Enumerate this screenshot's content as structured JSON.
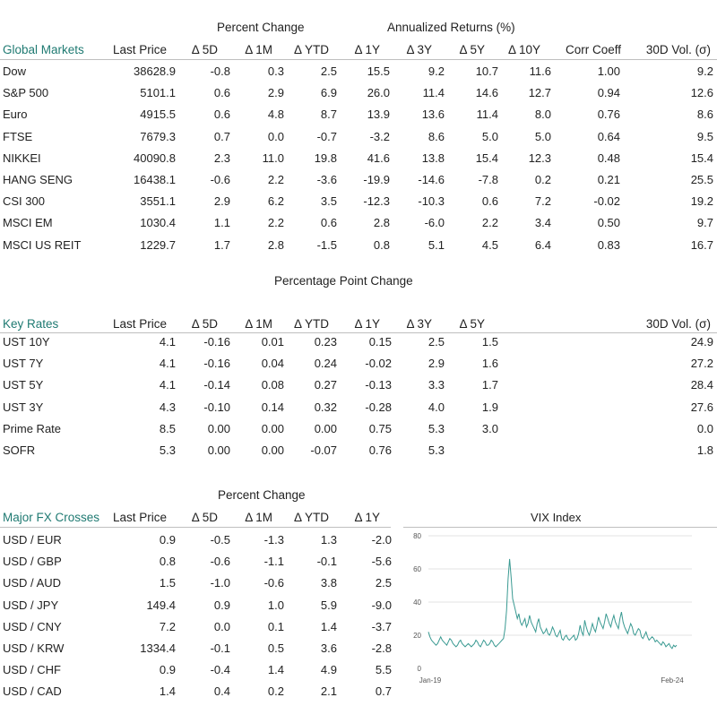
{
  "global": {
    "group_pct": "Percent Change",
    "group_ann": "Annualized Returns (%)",
    "title": "Global Markets",
    "cols": [
      "Last Price",
      "Δ 5D",
      "Δ 1M",
      "Δ YTD",
      "Δ 1Y",
      "Δ 3Y",
      "Δ 5Y",
      "Δ 10Y",
      "Corr Coeff",
      "30D Vol. (σ)"
    ],
    "rows": [
      {
        "name": "Dow",
        "vals": [
          "38628.9",
          "-0.8",
          "0.3",
          "2.5",
          "15.5",
          "9.2",
          "10.7",
          "11.6",
          "1.00",
          "9.2"
        ]
      },
      {
        "name": "S&P 500",
        "vals": [
          "5101.1",
          "0.6",
          "2.9",
          "6.9",
          "26.0",
          "11.4",
          "14.6",
          "12.7",
          "0.94",
          "12.6"
        ]
      },
      {
        "name": "Euro",
        "vals": [
          "4915.5",
          "0.6",
          "4.8",
          "8.7",
          "13.9",
          "13.6",
          "11.4",
          "8.0",
          "0.76",
          "8.6"
        ]
      },
      {
        "name": "FTSE",
        "vals": [
          "7679.3",
          "0.7",
          "0.0",
          "-0.7",
          "-3.2",
          "8.6",
          "5.0",
          "5.0",
          "0.64",
          "9.5"
        ]
      },
      {
        "name": "NIKKEI",
        "vals": [
          "40090.8",
          "2.3",
          "11.0",
          "19.8",
          "41.6",
          "13.8",
          "15.4",
          "12.3",
          "0.48",
          "15.4"
        ]
      },
      {
        "name": "HANG SENG",
        "vals": [
          "16438.1",
          "-0.6",
          "2.2",
          "-3.6",
          "-19.9",
          "-14.6",
          "-7.8",
          "0.2",
          "0.21",
          "25.5"
        ]
      },
      {
        "name": "CSI 300",
        "vals": [
          "3551.1",
          "2.9",
          "6.2",
          "3.5",
          "-12.3",
          "-10.3",
          "0.6",
          "7.2",
          "-0.02",
          "19.2"
        ]
      },
      {
        "name": "MSCI EM",
        "vals": [
          "1030.4",
          "1.1",
          "2.2",
          "0.6",
          "2.8",
          "-6.0",
          "2.2",
          "3.4",
          "0.50",
          "9.7"
        ]
      },
      {
        "name": "MSCI US REIT",
        "vals": [
          "1229.7",
          "1.7",
          "2.8",
          "-1.5",
          "0.8",
          "5.1",
          "4.5",
          "6.4",
          "0.83",
          "16.7"
        ]
      }
    ]
  },
  "rates": {
    "group": "Percentage Point Change",
    "title": "Key Rates",
    "cols": [
      "Last Price",
      "Δ 5D",
      "Δ 1M",
      "Δ YTD",
      "Δ 1Y",
      "Δ 3Y",
      "Δ 5Y",
      "30D Vol. (σ)"
    ],
    "rows": [
      {
        "name": "UST 10Y",
        "vals": [
          "4.1",
          "-0.16",
          "0.01",
          "0.23",
          "0.15",
          "2.5",
          "1.5",
          "24.9"
        ]
      },
      {
        "name": "UST 7Y",
        "vals": [
          "4.1",
          "-0.16",
          "0.04",
          "0.24",
          "-0.02",
          "2.9",
          "1.6",
          "27.2"
        ]
      },
      {
        "name": "UST 5Y",
        "vals": [
          "4.1",
          "-0.14",
          "0.08",
          "0.27",
          "-0.13",
          "3.3",
          "1.7",
          "28.4"
        ]
      },
      {
        "name": "UST 3Y",
        "vals": [
          "4.3",
          "-0.10",
          "0.14",
          "0.32",
          "-0.28",
          "4.0",
          "1.9",
          "27.6"
        ]
      },
      {
        "name": "Prime Rate",
        "vals": [
          "8.5",
          "0.00",
          "0.00",
          "0.00",
          "0.75",
          "5.3",
          "3.0",
          "0.0"
        ]
      },
      {
        "name": "SOFR",
        "vals": [
          "5.3",
          "0.00",
          "0.00",
          "-0.07",
          "0.76",
          "5.3",
          "",
          "1.8"
        ]
      }
    ]
  },
  "fx": {
    "group": "Percent Change",
    "title": "Major FX Crosses",
    "cols": [
      "Last Price",
      "Δ 5D",
      "Δ 1M",
      "Δ YTD",
      "Δ 1Y"
    ],
    "rows": [
      {
        "name": "USD / EUR",
        "vals": [
          "0.9",
          "-0.5",
          "-1.3",
          "1.3",
          "-2.0"
        ]
      },
      {
        "name": "USD / GBP",
        "vals": [
          "0.8",
          "-0.6",
          "-1.1",
          "-0.1",
          "-5.6"
        ]
      },
      {
        "name": "USD / AUD",
        "vals": [
          "1.5",
          "-1.0",
          "-0.6",
          "3.8",
          "2.5"
        ]
      },
      {
        "name": "USD / JPY",
        "vals": [
          "149.4",
          "0.9",
          "1.0",
          "5.9",
          "-9.0"
        ]
      },
      {
        "name": "USD / CNY",
        "vals": [
          "7.2",
          "0.0",
          "0.1",
          "1.4",
          "-3.7"
        ]
      },
      {
        "name": "USD / KRW",
        "vals": [
          "1334.4",
          "-0.1",
          "0.5",
          "3.6",
          "-2.8"
        ]
      },
      {
        "name": "USD / CHF",
        "vals": [
          "0.9",
          "-0.4",
          "1.4",
          "4.9",
          "5.5"
        ]
      },
      {
        "name": "USD / CAD",
        "vals": [
          "1.4",
          "0.4",
          "0.2",
          "2.1",
          "0.7"
        ]
      }
    ]
  },
  "colors": {
    "accent": "#1f7a72",
    "line": "#3a9a92",
    "grid": "#e3e3e3",
    "rule": "#bfbfbf"
  },
  "chart_data": {
    "type": "line",
    "title": "VIX Index",
    "xlabel": "",
    "ylabel": "",
    "x_ticks": [
      "Jan-19",
      "Feb-24"
    ],
    "ylim": [
      0,
      80
    ],
    "y_ticks": [
      0,
      20,
      40,
      60,
      80
    ],
    "grid": true,
    "series": [
      {
        "values": [
          22,
          19,
          17,
          16,
          15,
          14,
          15,
          17,
          19,
          17,
          16,
          15,
          14,
          16,
          18,
          17,
          15,
          14,
          13,
          14,
          16,
          17,
          15,
          14,
          13,
          14,
          15,
          14,
          13,
          14,
          15,
          17,
          16,
          14,
          13,
          15,
          17,
          16,
          14,
          14,
          15,
          17,
          16,
          14,
          13,
          14,
          15,
          16,
          17,
          18,
          24,
          35,
          54,
          66,
          55,
          42,
          38,
          34,
          30,
          33,
          28,
          26,
          28,
          30,
          25,
          27,
          32,
          28,
          26,
          24,
          22,
          27,
          30,
          25,
          23,
          21,
          22,
          24,
          21,
          20,
          22,
          25,
          23,
          20,
          19,
          21,
          23,
          18,
          17,
          19,
          20,
          18,
          17,
          18,
          19,
          20,
          17,
          18,
          21,
          26,
          22,
          20,
          29,
          25,
          22,
          20,
          23,
          27,
          24,
          22,
          26,
          31,
          28,
          26,
          24,
          28,
          33,
          30,
          27,
          25,
          29,
          32,
          28,
          26,
          24,
          30,
          34,
          28,
          25,
          23,
          21,
          24,
          27,
          25,
          21,
          20,
          22,
          24,
          23,
          19,
          18,
          20,
          22,
          19,
          17,
          18,
          19,
          18,
          16,
          17,
          16,
          15,
          14,
          16,
          15,
          13,
          14,
          15,
          13,
          12,
          14,
          13,
          14
        ]
      }
    ]
  }
}
